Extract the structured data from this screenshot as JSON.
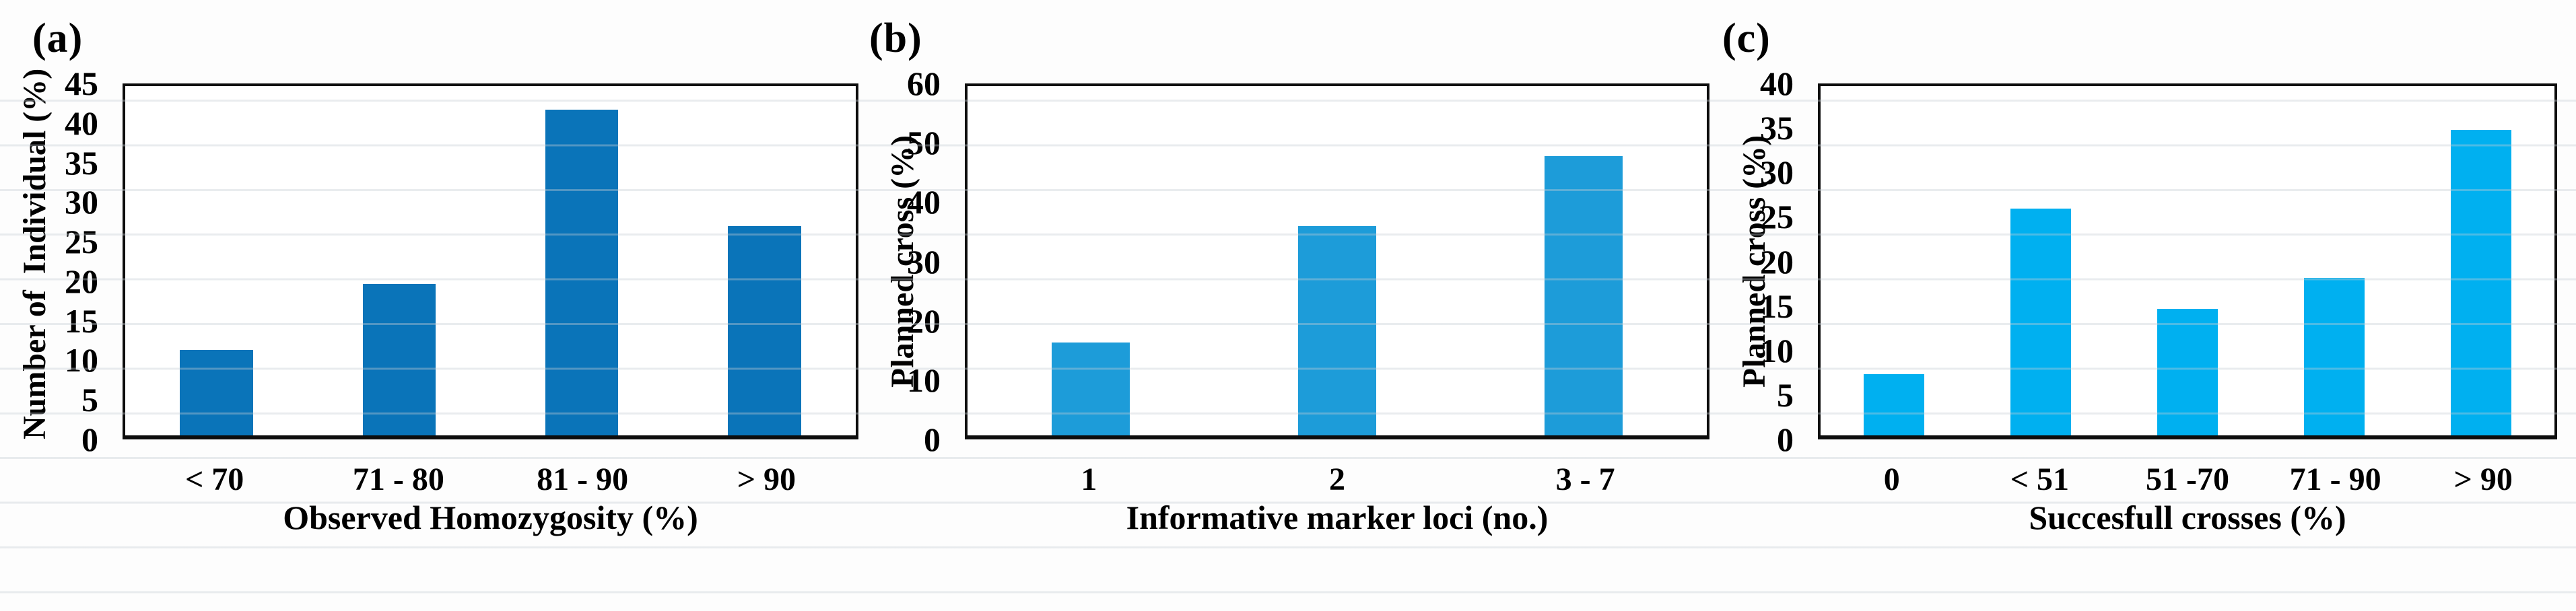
{
  "chart_data": [
    {
      "type": "bar",
      "panel_label": "(a)",
      "categories": [
        "< 70",
        "71 - 80",
        "81 - 90",
        "> 90"
      ],
      "values": [
        11,
        19.5,
        42,
        27
      ],
      "title": "",
      "xlabel": "Observed Homozygosity (%)",
      "ylabel": "Number of  Individual (%)",
      "ylim": [
        0,
        45
      ],
      "ytick_step": 5,
      "grid": false,
      "legend": "none",
      "bar_color": "#0a74b9",
      "bar_width_pct": 40
    },
    {
      "type": "bar",
      "panel_label": "(b)",
      "categories": [
        "1",
        "2",
        "3 - 7"
      ],
      "values": [
        16,
        36,
        48
      ],
      "title": "",
      "xlabel": "Informative marker loci (no.)",
      "ylabel": "Planned cross (%)",
      "ylim": [
        0,
        60
      ],
      "ytick_step": 10,
      "grid": false,
      "legend": "none",
      "bar_color": "#1d9cd9",
      "bar_width_pct": 31.5
    },
    {
      "type": "bar",
      "panel_label": "(c)",
      "categories": [
        "0",
        "< 51",
        "51 -70",
        "71 - 90",
        "> 90"
      ],
      "values": [
        7,
        26,
        14.5,
        18,
        35
      ],
      "title": "",
      "xlabel": "Succesfull crosses (%)",
      "ylabel": "Planned cross (%)",
      "ylim": [
        0,
        40
      ],
      "ytick_step": 5,
      "grid": false,
      "legend": "none",
      "bar_color": "#00b0f0",
      "bar_width_pct": 41.5
    }
  ]
}
